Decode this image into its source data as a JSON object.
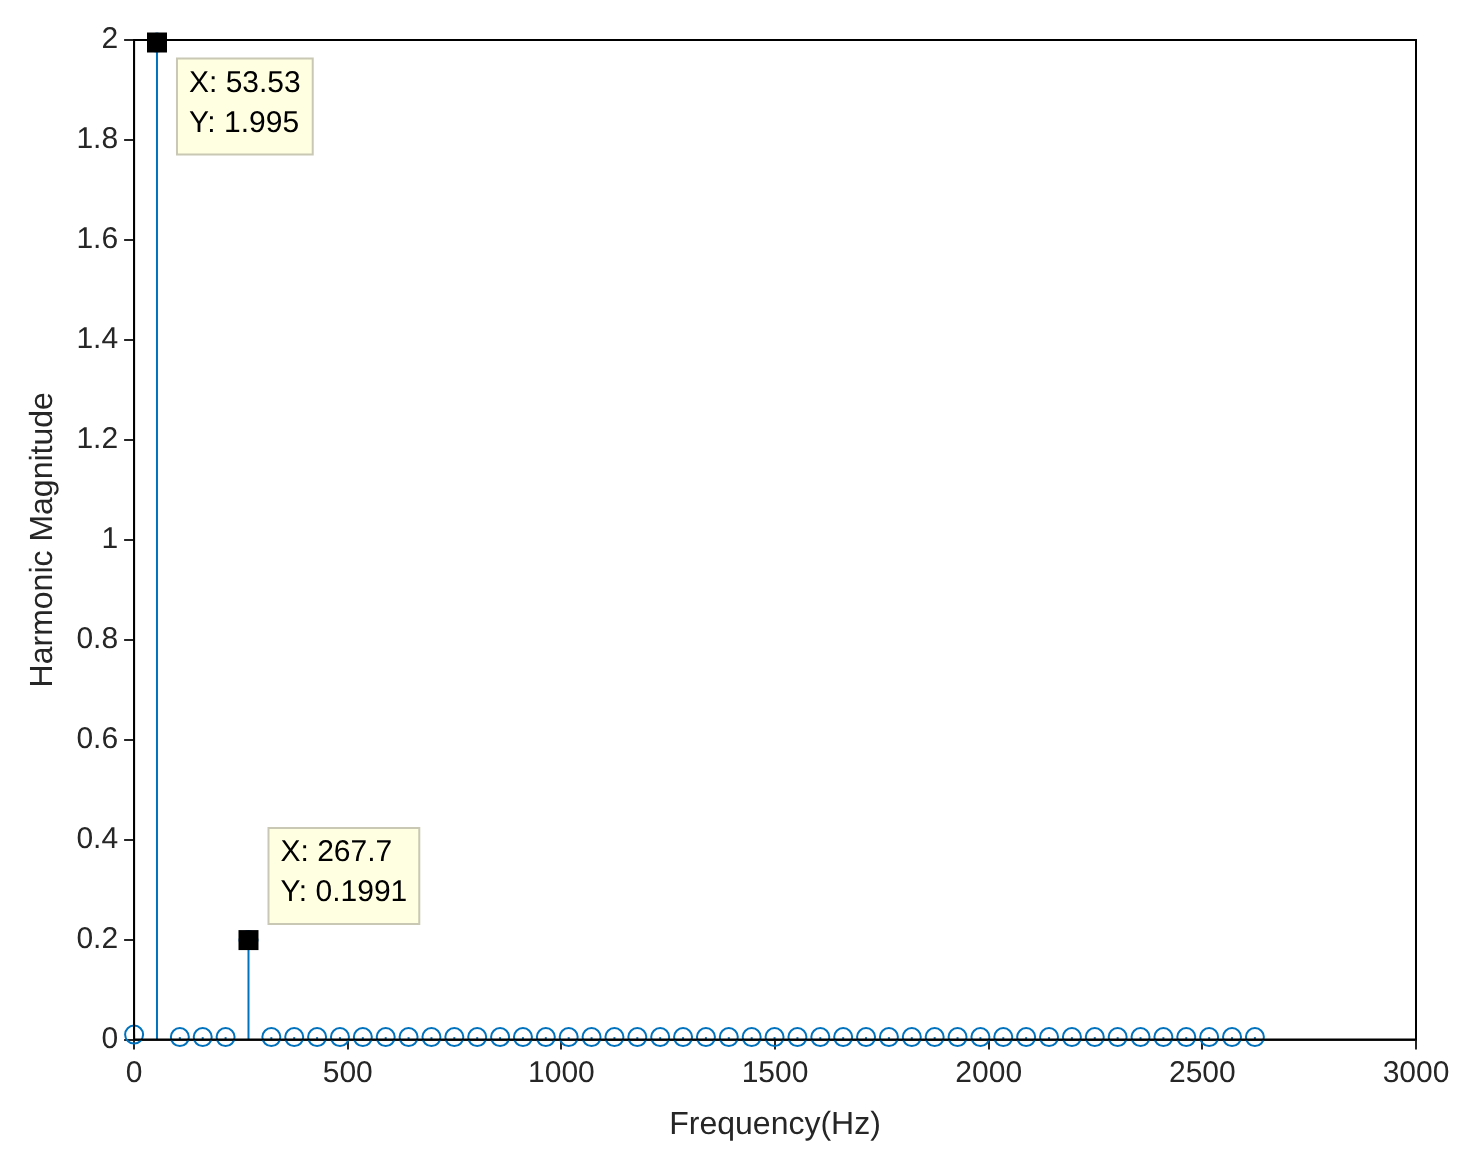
{
  "chart_data": {
    "type": "lollipop",
    "xlabel": "Frequency(Hz)",
    "ylabel": "Harmonic Magnitude",
    "x": [
      0,
      53.53,
      107.06,
      160.59,
      214.12,
      267.7,
      321.18,
      374.71,
      428.24,
      481.77,
      535.3,
      588.83,
      642.36,
      695.89,
      749.42,
      802.95,
      856.48,
      910.01,
      963.54,
      1017.07,
      1070.6,
      1124.13,
      1177.66,
      1231.19,
      1284.72,
      1338.25,
      1391.78,
      1445.31,
      1498.84,
      1552.37,
      1605.9,
      1659.43,
      1712.96,
      1766.49,
      1820.02,
      1873.55,
      1927.08,
      1980.61,
      2034.14,
      2087.67,
      2141.2,
      2194.73,
      2248.26,
      2301.79,
      2355.32,
      2408.85,
      2462.38,
      2515.91,
      2569.44,
      2622.97
    ],
    "series": [
      {
        "color": "#0072bd",
        "values": [
          0.01,
          1.995,
          0.005,
          0.005,
          0.005,
          0.1991,
          0.005,
          0.005,
          0.005,
          0.005,
          0.005,
          0.005,
          0.005,
          0.005,
          0.005,
          0.005,
          0.005,
          0.005,
          0.005,
          0.005,
          0.005,
          0.005,
          0.005,
          0.005,
          0.005,
          0.005,
          0.005,
          0.005,
          0.005,
          0.005,
          0.005,
          0.005,
          0.005,
          0.005,
          0.005,
          0.005,
          0.005,
          0.005,
          0.005,
          0.005,
          0.005,
          0.005,
          0.005,
          0.005,
          0.005,
          0.005,
          0.005,
          0.005,
          0.005,
          0.005
        ]
      }
    ],
    "xlim": [
      0,
      3000
    ],
    "xticks": [
      0,
      500,
      1000,
      1500,
      2000,
      2500,
      3000
    ],
    "ylim": [
      0,
      2
    ],
    "yticks": [
      0,
      0.2,
      0.4,
      0.6,
      0.8,
      1,
      1.2,
      1.4,
      1.6,
      1.8,
      2
    ],
    "marker": "circle",
    "grid": false,
    "legend": false,
    "annotations": [
      {
        "text": "X: 53.53\nY: 1.995",
        "x": 53.53,
        "y": 1.995
      },
      {
        "text": "X: 267.7\nY: 0.1991",
        "x": 267.7,
        "y": 0.1991
      }
    ]
  }
}
